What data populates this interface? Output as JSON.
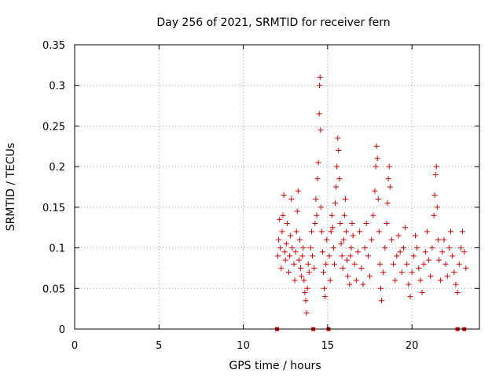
{
  "chart_data": {
    "type": "scatter",
    "title": "Day 256 of 2021, SRMTID for receiver fern",
    "xlabel": "GPS time / hours",
    "ylabel": "SRMTID / TECUs",
    "xlim": [
      0,
      24
    ],
    "ylim": [
      0,
      0.35
    ],
    "x_ticks": [
      0,
      5,
      10,
      15,
      20
    ],
    "x_tick_labels": [
      "0",
      "5",
      "10",
      "15",
      "20"
    ],
    "y_ticks": [
      0,
      0.05,
      0.1,
      0.15,
      0.2,
      0.25,
      0.3,
      0.35
    ],
    "y_tick_labels": [
      "0",
      "0.05",
      "0.1",
      "0.15",
      "0.2",
      "0.25",
      "0.3",
      "0.35"
    ],
    "grid": true,
    "marker": "plus",
    "marker_color": "#e00000",
    "zero_markers_x": [
      12.0,
      14.15,
      15.05,
      22.7,
      23.1
    ],
    "series": [
      {
        "name": "SRMTID",
        "points": [
          [
            12.05,
            0.09
          ],
          [
            12.1,
            0.11
          ],
          [
            12.15,
            0.135
          ],
          [
            12.2,
            0.1
          ],
          [
            12.25,
            0.075
          ],
          [
            12.3,
            0.12
          ],
          [
            12.35,
            0.14
          ],
          [
            12.4,
            0.165
          ],
          [
            12.45,
            0.095
          ],
          [
            12.5,
            0.085
          ],
          [
            12.55,
            0.105
          ],
          [
            12.6,
            0.13
          ],
          [
            12.7,
            0.07
          ],
          [
            12.75,
            0.09
          ],
          [
            12.8,
            0.115
          ],
          [
            12.85,
            0.16
          ],
          [
            12.9,
            0.1
          ],
          [
            13.0,
            0.08
          ],
          [
            13.05,
            0.06
          ],
          [
            13.1,
            0.095
          ],
          [
            13.15,
            0.12
          ],
          [
            13.2,
            0.145
          ],
          [
            13.25,
            0.17
          ],
          [
            13.3,
            0.085
          ],
          [
            13.35,
            0.11
          ],
          [
            13.4,
            0.075
          ],
          [
            13.45,
            0.065
          ],
          [
            13.5,
            0.09
          ],
          [
            13.55,
            0.1
          ],
          [
            13.6,
            0.06
          ],
          [
            13.65,
            0.045
          ],
          [
            13.7,
            0.035
          ],
          [
            13.75,
            0.02
          ],
          [
            13.8,
            0.05
          ],
          [
            13.85,
            0.08
          ],
          [
            13.9,
            0.07
          ],
          [
            14.0,
            0.1
          ],
          [
            14.05,
            0.12
          ],
          [
            14.1,
            0.09
          ],
          [
            14.2,
            0.075
          ],
          [
            14.25,
            0.13
          ],
          [
            14.3,
            0.16
          ],
          [
            14.35,
            0.14
          ],
          [
            14.4,
            0.185
          ],
          [
            14.45,
            0.205
          ],
          [
            14.5,
            0.265
          ],
          [
            14.52,
            0.3
          ],
          [
            14.55,
            0.31
          ],
          [
            14.58,
            0.245
          ],
          [
            14.6,
            0.15
          ],
          [
            14.65,
            0.12
          ],
          [
            14.7,
            0.095
          ],
          [
            14.75,
            0.07
          ],
          [
            14.8,
            0.05
          ],
          [
            14.85,
            0.04
          ],
          [
            14.9,
            0.08
          ],
          [
            14.95,
            0.11
          ],
          [
            15.1,
            0.09
          ],
          [
            15.15,
            0.06
          ],
          [
            15.2,
            0.12
          ],
          [
            15.25,
            0.14
          ],
          [
            15.3,
            0.125
          ],
          [
            15.35,
            0.1
          ],
          [
            15.4,
            0.08
          ],
          [
            15.45,
            0.155
          ],
          [
            15.5,
            0.175
          ],
          [
            15.55,
            0.2
          ],
          [
            15.6,
            0.235
          ],
          [
            15.65,
            0.22
          ],
          [
            15.7,
            0.185
          ],
          [
            15.75,
            0.13
          ],
          [
            15.8,
            0.105
          ],
          [
            15.85,
            0.09
          ],
          [
            15.9,
            0.075
          ],
          [
            15.95,
            0.11
          ],
          [
            16.0,
            0.14
          ],
          [
            16.05,
            0.16
          ],
          [
            16.1,
            0.12
          ],
          [
            16.15,
            0.085
          ],
          [
            16.2,
            0.065
          ],
          [
            16.3,
            0.055
          ],
          [
            16.35,
            0.09
          ],
          [
            16.4,
            0.1
          ],
          [
            16.45,
            0.13
          ],
          [
            16.5,
            0.115
          ],
          [
            16.6,
            0.08
          ],
          [
            16.7,
            0.06
          ],
          [
            16.8,
            0.095
          ],
          [
            16.9,
            0.12
          ],
          [
            17.0,
            0.075
          ],
          [
            17.1,
            0.055
          ],
          [
            17.2,
            0.1
          ],
          [
            17.3,
            0.13
          ],
          [
            17.4,
            0.09
          ],
          [
            17.5,
            0.065
          ],
          [
            17.6,
            0.11
          ],
          [
            17.7,
            0.14
          ],
          [
            17.8,
            0.17
          ],
          [
            17.85,
            0.2
          ],
          [
            17.9,
            0.225
          ],
          [
            17.95,
            0.21
          ],
          [
            18.0,
            0.16
          ],
          [
            18.05,
            0.12
          ],
          [
            18.1,
            0.08
          ],
          [
            18.15,
            0.05
          ],
          [
            18.2,
            0.035
          ],
          [
            18.3,
            0.07
          ],
          [
            18.4,
            0.1
          ],
          [
            18.5,
            0.13
          ],
          [
            18.55,
            0.155
          ],
          [
            18.6,
            0.185
          ],
          [
            18.65,
            0.2
          ],
          [
            18.7,
            0.175
          ],
          [
            18.8,
            0.11
          ],
          [
            18.9,
            0.08
          ],
          [
            19.0,
            0.06
          ],
          [
            19.1,
            0.09
          ],
          [
            19.2,
            0.115
          ],
          [
            19.3,
            0.095
          ],
          [
            19.4,
            0.07
          ],
          [
            19.5,
            0.1
          ],
          [
            19.6,
            0.125
          ],
          [
            19.7,
            0.08
          ],
          [
            19.8,
            0.055
          ],
          [
            19.9,
            0.04
          ],
          [
            20.0,
            0.07
          ],
          [
            20.1,
            0.09
          ],
          [
            20.2,
            0.115
          ],
          [
            20.3,
            0.1
          ],
          [
            20.4,
            0.075
          ],
          [
            20.5,
            0.06
          ],
          [
            20.6,
            0.045
          ],
          [
            20.7,
            0.08
          ],
          [
            20.8,
            0.095
          ],
          [
            20.9,
            0.12
          ],
          [
            21.0,
            0.085
          ],
          [
            21.1,
            0.065
          ],
          [
            21.2,
            0.1
          ],
          [
            21.3,
            0.14
          ],
          [
            21.35,
            0.165
          ],
          [
            21.4,
            0.19
          ],
          [
            21.45,
            0.2
          ],
          [
            21.5,
            0.15
          ],
          [
            21.55,
            0.11
          ],
          [
            21.6,
            0.085
          ],
          [
            21.7,
            0.06
          ],
          [
            21.8,
            0.095
          ],
          [
            21.9,
            0.11
          ],
          [
            22.0,
            0.08
          ],
          [
            22.1,
            0.065
          ],
          [
            22.2,
            0.1
          ],
          [
            22.3,
            0.12
          ],
          [
            22.4,
            0.09
          ],
          [
            22.5,
            0.07
          ],
          [
            22.6,
            0.055
          ],
          [
            22.7,
            0.045
          ],
          [
            22.8,
            0.08
          ],
          [
            22.9,
            0.1
          ],
          [
            23.0,
            0.12
          ],
          [
            23.1,
            0.095
          ],
          [
            23.2,
            0.075
          ]
        ]
      }
    ]
  }
}
